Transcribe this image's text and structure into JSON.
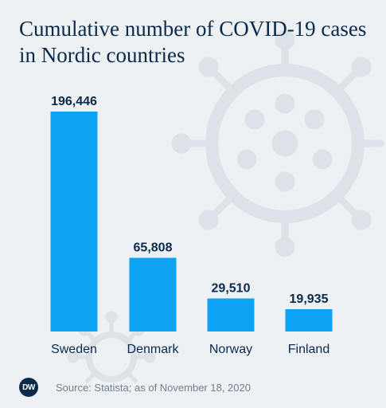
{
  "chart_data": {
    "type": "bar",
    "title": "Cumulative number of COVID-19 cases in Nordic countries",
    "categories": [
      "Sweden",
      "Denmark",
      "Norway",
      "Finland"
    ],
    "values": [
      196446,
      65808,
      29510,
      19935
    ],
    "value_labels": [
      "196,446",
      "65,808",
      "29,510",
      "19,935"
    ],
    "ylim": [
      0,
      196446
    ],
    "grid": false,
    "bar_color": "#0fa3f5"
  },
  "footer": {
    "logo_text": "DW",
    "source": "Source: Statista; as of November 18, 2020"
  },
  "colors": {
    "background": "#eef1f4",
    "title": "#0b2a4a",
    "decoration": "#dde2e8"
  }
}
